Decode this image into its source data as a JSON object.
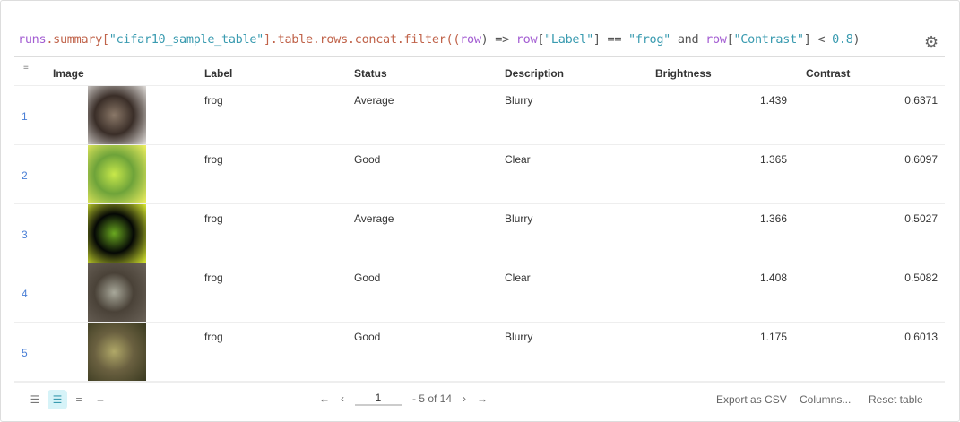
{
  "query": {
    "p1": "runs",
    "p2": ".summary[",
    "p3": "\"cifar10_sample_table\"",
    "p4": "].table.rows.concat.filter((",
    "p5": "row",
    "p6": ") => ",
    "p7": "row",
    "p8": "[",
    "p9": "\"Label\"",
    "p10": "] == ",
    "p11": "\"frog\"",
    "p12": " and ",
    "p13": "row",
    "p14": "[",
    "p15": "\"Contrast\"",
    "p16": "] < ",
    "p17": "0.8",
    "p18": ")"
  },
  "icons": {
    "settings": "gear-icon",
    "filter": "filter-icon"
  },
  "columns": [
    "Image",
    "Label",
    "Status",
    "Description",
    "Brightness",
    "Contrast"
  ],
  "rows": [
    {
      "idx": "1",
      "label": "frog",
      "status": "Average",
      "description": "Blurry",
      "brightness": "1.439",
      "contrast": "0.6371",
      "colors": [
        "#3a2e28",
        "#8a7868",
        "#e0ddda"
      ]
    },
    {
      "idx": "2",
      "label": "frog",
      "status": "Good",
      "description": "Clear",
      "brightness": "1.365",
      "contrast": "0.6097",
      "colors": [
        "#6ea33a",
        "#c8e84a",
        "#f0f060"
      ]
    },
    {
      "idx": "3",
      "label": "frog",
      "status": "Average",
      "description": "Blurry",
      "brightness": "1.366",
      "contrast": "0.5027",
      "colors": [
        "#050805",
        "#6aa820",
        "#d8e830"
      ]
    },
    {
      "idx": "4",
      "label": "frog",
      "status": "Good",
      "description": "Clear",
      "brightness": "1.408",
      "contrast": "0.5082",
      "colors": [
        "#4a4238",
        "#a8a89a",
        "#6a6258"
      ]
    },
    {
      "idx": "5",
      "label": "frog",
      "status": "Good",
      "description": "Blurry",
      "brightness": "1.175",
      "contrast": "0.6013",
      "colors": [
        "#6a6040",
        "#b0a868",
        "#3a3a20"
      ]
    }
  ],
  "pagination": {
    "page": "1",
    "range": "- 5 of 14"
  },
  "footer": {
    "export": "Export as CSV",
    "columns": "Columns...",
    "reset": "Reset table"
  },
  "accent": "#3a9bb0"
}
